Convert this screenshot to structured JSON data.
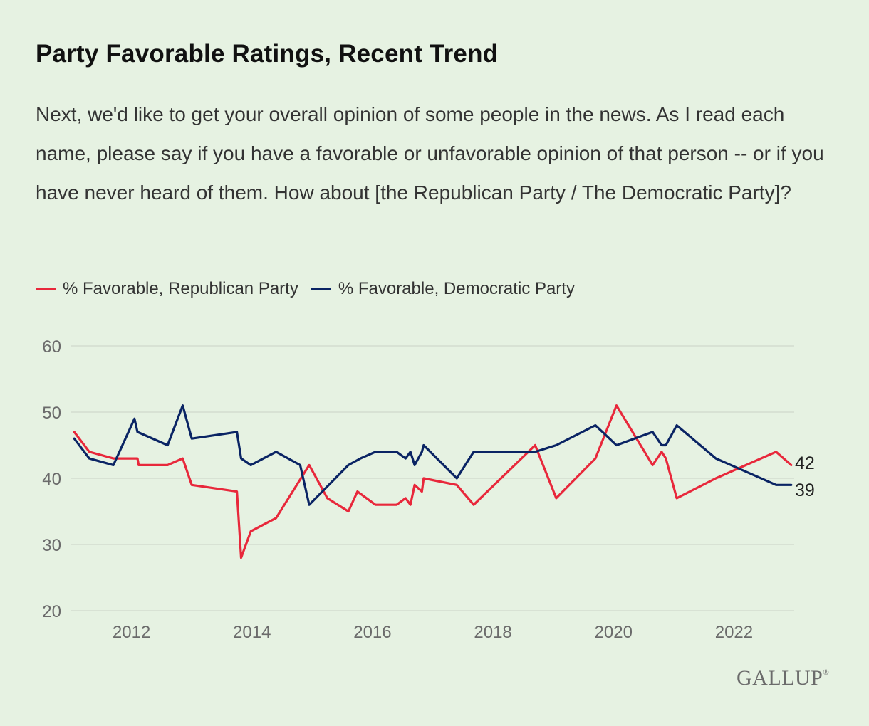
{
  "title": "Party Favorable Ratings, Recent Trend",
  "subtitle": "Next, we'd like to get your overall opinion of some people in the news. As I read each name, please say if you have a favorable or unfavorable opinion of that person -- or if you have never heard of them. How about [the Republican Party / The Democratic Party]?",
  "logo": "GALLUP",
  "colors": {
    "background": "#e6f2e2",
    "republican": "#e8283b",
    "democratic": "#0a2464",
    "grid": "#cfd8cb",
    "axis_text": "#6b6b6b"
  },
  "chart_data": {
    "type": "line",
    "title": "Party Favorable Ratings, Recent Trend",
    "xlim": [
      2011.0,
      2023.0
    ],
    "ylim": [
      20,
      60
    ],
    "yticks": [
      20,
      30,
      40,
      50,
      60
    ],
    "xticks": [
      2012,
      2014,
      2016,
      2018,
      2020,
      2022
    ],
    "grid": "horizontal",
    "legend": "top-left",
    "series": [
      {
        "name": "% Favorable, Republican Party",
        "color": "#e8283b",
        "end_label": "42",
        "points": [
          [
            2011.05,
            47
          ],
          [
            2011.3,
            44
          ],
          [
            2011.7,
            43
          ],
          [
            2011.95,
            43
          ],
          [
            2012.1,
            43
          ],
          [
            2012.12,
            42
          ],
          [
            2012.6,
            42
          ],
          [
            2012.85,
            43
          ],
          [
            2013.0,
            39
          ],
          [
            2013.75,
            38
          ],
          [
            2013.82,
            28
          ],
          [
            2013.98,
            32
          ],
          [
            2014.4,
            34
          ],
          [
            2014.95,
            42
          ],
          [
            2015.25,
            37
          ],
          [
            2015.6,
            35
          ],
          [
            2015.75,
            38
          ],
          [
            2016.05,
            36
          ],
          [
            2016.4,
            36
          ],
          [
            2016.55,
            37
          ],
          [
            2016.63,
            36
          ],
          [
            2016.7,
            39
          ],
          [
            2016.82,
            38
          ],
          [
            2016.85,
            40
          ],
          [
            2017.4,
            39
          ],
          [
            2017.68,
            36
          ],
          [
            2018.7,
            45
          ],
          [
            2019.05,
            37
          ],
          [
            2019.7,
            43
          ],
          [
            2020.05,
            51
          ],
          [
            2020.65,
            42
          ],
          [
            2020.8,
            44
          ],
          [
            2020.87,
            43
          ],
          [
            2021.05,
            37
          ],
          [
            2021.7,
            40
          ],
          [
            2022.7,
            44
          ],
          [
            2022.95,
            42
          ]
        ]
      },
      {
        "name": "% Favorable, Democratic Party",
        "color": "#0a2464",
        "end_label": "39",
        "points": [
          [
            2011.05,
            46
          ],
          [
            2011.3,
            43
          ],
          [
            2011.7,
            42
          ],
          [
            2012.05,
            49
          ],
          [
            2012.1,
            47
          ],
          [
            2012.6,
            45
          ],
          [
            2012.85,
            51
          ],
          [
            2013.0,
            46
          ],
          [
            2013.75,
            47
          ],
          [
            2013.82,
            43
          ],
          [
            2013.98,
            42
          ],
          [
            2014.4,
            44
          ],
          [
            2014.8,
            42
          ],
          [
            2014.95,
            36
          ],
          [
            2015.6,
            42
          ],
          [
            2015.8,
            43
          ],
          [
            2016.05,
            44
          ],
          [
            2016.4,
            44
          ],
          [
            2016.55,
            43
          ],
          [
            2016.63,
            44
          ],
          [
            2016.7,
            42
          ],
          [
            2016.82,
            44
          ],
          [
            2016.85,
            45
          ],
          [
            2017.4,
            40
          ],
          [
            2017.68,
            44
          ],
          [
            2018.7,
            44
          ],
          [
            2019.05,
            45
          ],
          [
            2019.7,
            48
          ],
          [
            2020.05,
            45
          ],
          [
            2020.65,
            47
          ],
          [
            2020.8,
            45
          ],
          [
            2020.87,
            45
          ],
          [
            2021.05,
            48
          ],
          [
            2021.7,
            43
          ],
          [
            2022.7,
            39
          ],
          [
            2022.95,
            39
          ]
        ]
      }
    ]
  }
}
